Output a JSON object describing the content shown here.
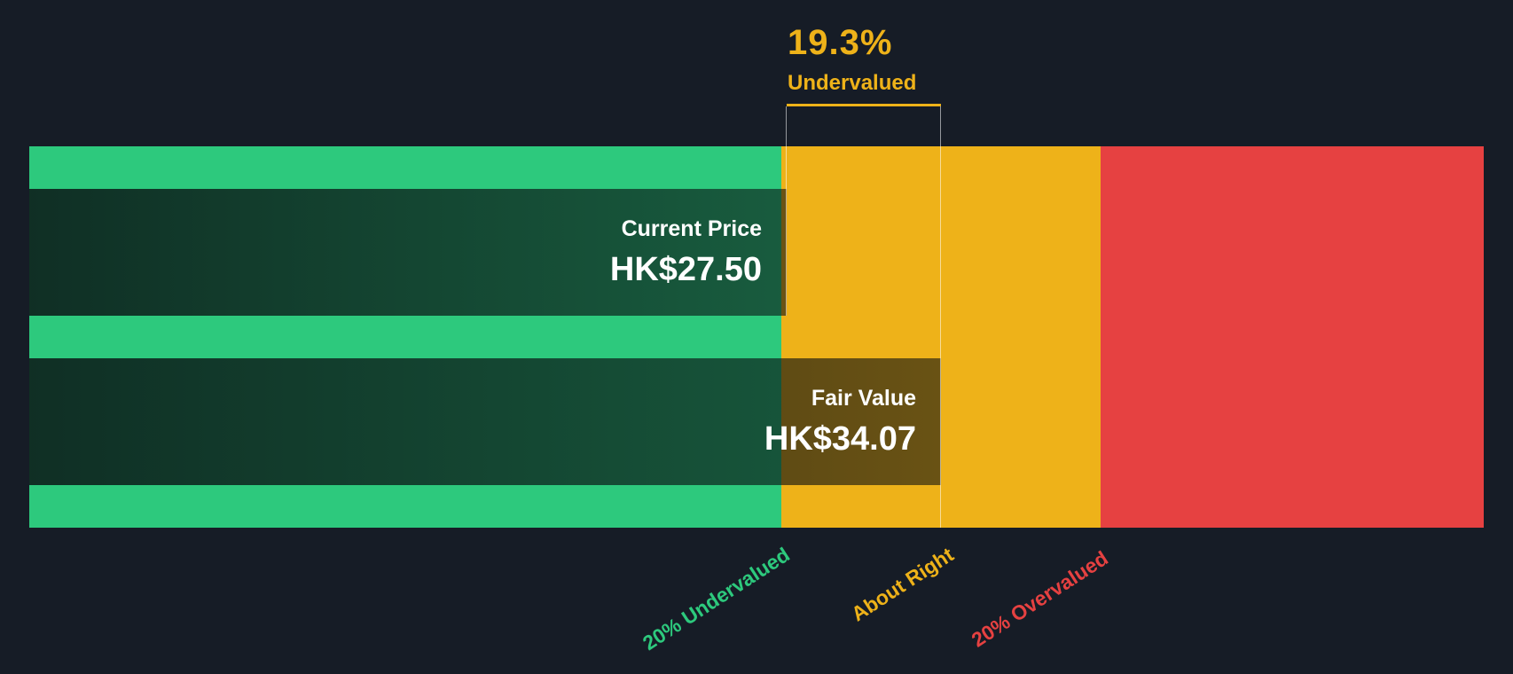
{
  "chart_data": {
    "type": "bar",
    "annotation": {
      "percent": "19.3%",
      "label": "Undervalued",
      "color": "#EEB219"
    },
    "bars": [
      {
        "label": "Current Price",
        "value": "HK$27.50",
        "numeric": 27.5
      },
      {
        "label": "Fair Value",
        "value": "HK$34.07",
        "numeric": 34.07
      }
    ],
    "zones": [
      {
        "label": "20% Undervalued",
        "color": "#2DC97D"
      },
      {
        "label": "About Right",
        "color": "#EEB219"
      },
      {
        "label": "20% Overvalued",
        "color": "#E64141"
      }
    ],
    "background_color": "#161C26",
    "text_color": "#FFFFFF"
  }
}
